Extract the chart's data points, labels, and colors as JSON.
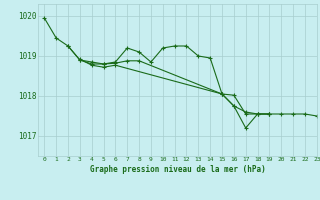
{
  "background_color": "#c8eef0",
  "grid_color": "#a8cece",
  "line_color": "#1a6b1a",
  "title": "Graphe pression niveau de la mer (hPa)",
  "xlim": [
    -0.5,
    23
  ],
  "ylim": [
    1016.5,
    1020.3
  ],
  "yticks": [
    1017,
    1018,
    1019,
    1020
  ],
  "xticks": [
    0,
    1,
    2,
    3,
    4,
    5,
    6,
    7,
    8,
    9,
    10,
    11,
    12,
    13,
    14,
    15,
    16,
    17,
    18,
    19,
    20,
    21,
    22,
    23
  ],
  "series": [
    {
      "x": [
        0,
        1,
        2,
        3,
        4,
        5,
        6,
        7,
        8,
        9,
        10,
        11,
        12,
        13,
        14,
        15,
        16,
        17,
        18,
        19,
        20,
        21,
        22,
        23
      ],
      "y": [
        1019.95,
        1019.45,
        1019.25,
        1018.9,
        1018.85,
        1018.8,
        1018.85,
        1019.2,
        1019.1,
        1018.85,
        1019.2,
        1019.25,
        1019.25,
        1019.0,
        1018.95,
        1018.05,
        1017.75,
        1017.6,
        1017.55,
        1017.55,
        1017.55,
        1017.55,
        1017.55,
        1017.5
      ]
    },
    {
      "x": [
        2,
        3,
        4,
        5,
        6,
        7,
        8,
        15,
        16,
        17,
        18,
        19
      ],
      "y": [
        1019.25,
        1018.9,
        1018.8,
        1018.8,
        1018.82,
        1018.88,
        1018.88,
        1018.05,
        1017.75,
        1017.2,
        1017.55,
        1017.55
      ]
    },
    {
      "x": [
        3,
        4,
        5,
        6,
        15,
        16,
        17,
        18,
        19
      ],
      "y": [
        1018.92,
        1018.77,
        1018.72,
        1018.77,
        1018.05,
        1018.02,
        1017.55,
        1017.55,
        1017.55
      ]
    }
  ]
}
